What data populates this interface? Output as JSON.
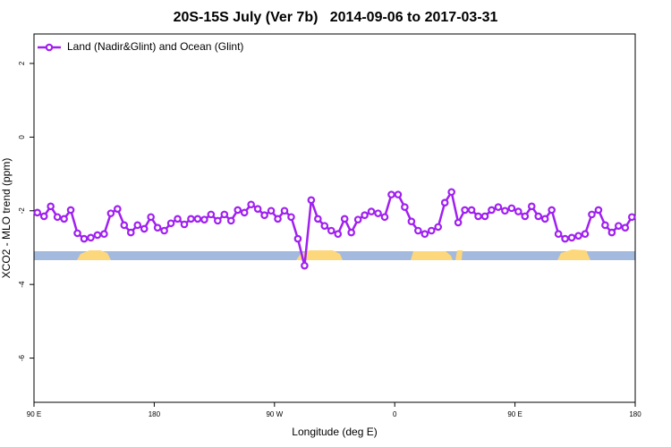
{
  "chart_data": {
    "type": "line",
    "title": "20S-15S July (Ver 7b)   2014-09-06 to 2017-03-31",
    "xlabel": "Longitude (deg E)",
    "ylabel": "XCO2 - MLO trend (ppm)",
    "xlim": [
      -270,
      180
    ],
    "ylim": [
      -7.2,
      2.8
    ],
    "xticks": [
      {
        "value": -270,
        "label": "90 E"
      },
      {
        "value": -180,
        "label": "180"
      },
      {
        "value": -90,
        "label": "90 W"
      },
      0,
      {
        "value": 90,
        "label": "90 E"
      },
      180
    ],
    "yticks": [
      2,
      0,
      -2,
      -4,
      -6
    ],
    "legend": "top-left",
    "x": [
      -267.5,
      -262.5,
      -257.5,
      -252.5,
      -247.5,
      -242.5,
      -237.5,
      -232.5,
      -227.5,
      -222.5,
      -217.5,
      -212.5,
      -207.5,
      -202.5,
      -197.5,
      -192.5,
      -187.5,
      -182.5,
      -177.5,
      -172.5,
      -167.5,
      -162.5,
      -157.5,
      -152.5,
      -147.5,
      -142.5,
      -137.5,
      -132.5,
      -127.5,
      -122.5,
      -117.5,
      -112.5,
      -107.5,
      -102.5,
      -97.5,
      -92.5,
      -87.5,
      -82.5,
      -77.5,
      -72.5,
      -67.5,
      -62.5,
      -57.5,
      -52.5,
      -47.5,
      -42.5,
      -37.5,
      -32.5,
      -27.5,
      -22.5,
      -17.5,
      -12.5,
      -7.5,
      -2.5,
      2.5,
      7.5,
      12.5,
      17.5,
      22.5,
      27.5,
      32.5,
      37.5,
      42.5,
      47.5,
      52.5,
      57.5,
      62.5,
      67.5,
      72.5,
      77.5,
      82.5,
      87.5,
      92.5,
      97.5,
      102.5,
      107.5,
      112.5,
      117.5,
      122.5,
      127.5,
      132.5,
      137.5,
      142.5,
      147.5,
      152.5,
      157.5,
      162.5,
      167.5,
      172.5,
      177.5
    ],
    "series": [
      {
        "name": "Land (Nadir&Glint) and Ocean (Glint)",
        "color": "#a020f0",
        "values": [
          -2.05,
          -2.15,
          -1.88,
          -2.17,
          -2.22,
          -1.98,
          -2.61,
          -2.76,
          -2.73,
          -2.66,
          -2.63,
          -2.07,
          -1.95,
          -2.39,
          -2.59,
          -2.39,
          -2.49,
          -2.17,
          -2.46,
          -2.54,
          -2.34,
          -2.22,
          -2.37,
          -2.22,
          -2.22,
          -2.24,
          -2.1,
          -2.27,
          -2.1,
          -2.27,
          -1.98,
          -2.05,
          -1.83,
          -1.95,
          -2.12,
          -2.0,
          -2.22,
          -2.0,
          -2.17,
          -2.76,
          -3.49,
          -1.71,
          -2.22,
          -2.41,
          -2.54,
          -2.63,
          -2.22,
          -2.59,
          -2.24,
          -2.12,
          -2.02,
          -2.07,
          -2.17,
          -1.56,
          -1.56,
          -1.9,
          -2.29,
          -2.54,
          -2.63,
          -2.54,
          -2.44,
          -1.78,
          -1.49,
          -2.32,
          -1.98,
          -1.98,
          -2.15,
          -2.15,
          -1.98,
          -1.9,
          -2.0,
          -1.93,
          -2.02,
          -2.15,
          -1.88,
          -2.15,
          -2.22,
          -1.98,
          -2.63,
          -2.76,
          -2.73,
          -2.68,
          -2.63,
          -2.1,
          -1.98,
          -2.39,
          -2.59,
          -2.41,
          -2.46,
          -2.17
        ]
      }
    ]
  }
}
